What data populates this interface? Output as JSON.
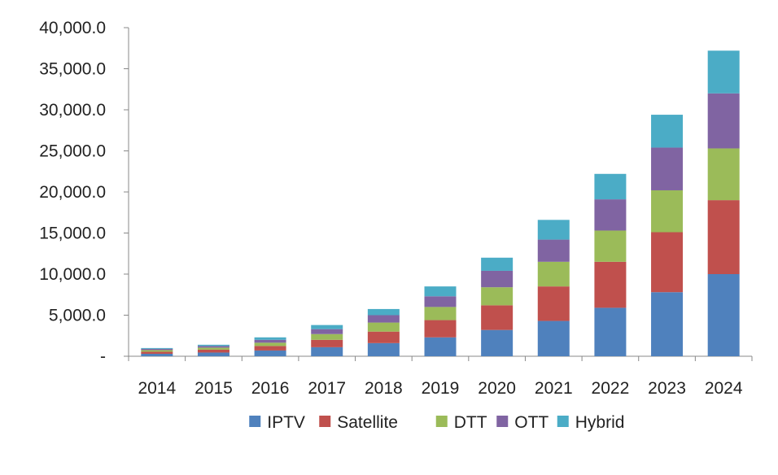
{
  "chart_data": {
    "type": "bar",
    "stacked": true,
    "categories": [
      "2014",
      "2015",
      "2016",
      "2017",
      "2018",
      "2019",
      "2020",
      "2021",
      "2022",
      "2023",
      "2024"
    ],
    "series": [
      {
        "name": "IPTV",
        "color": "#4F81BD",
        "values": [
          300,
          450,
          700,
          1100,
          1600,
          2300,
          3200,
          4300,
          5900,
          7800,
          10000
        ]
      },
      {
        "name": "Satellite",
        "color": "#C0504D",
        "values": [
          250,
          350,
          550,
          900,
          1400,
          2100,
          3000,
          4200,
          5600,
          7300,
          9000
        ]
      },
      {
        "name": "DTT",
        "color": "#9BBB59",
        "values": [
          200,
          250,
          400,
          700,
          1100,
          1600,
          2200,
          3000,
          3800,
          5100,
          6300
        ]
      },
      {
        "name": "OTT",
        "color": "#8064A2",
        "values": [
          150,
          200,
          350,
          600,
          900,
          1300,
          2000,
          2700,
          3800,
          5200,
          6700
        ]
      },
      {
        "name": "Hybrid",
        "color": "#4BACC6",
        "values": [
          100,
          150,
          300,
          500,
          750,
          1200,
          1600,
          2400,
          3100,
          4000,
          5200
        ]
      }
    ],
    "ylim": [
      0,
      40000
    ],
    "yticks": [
      0,
      5000,
      10000,
      15000,
      20000,
      25000,
      30000,
      35000,
      40000
    ],
    "ytick_labels": [
      "-",
      "5,000.0",
      "10,000.0",
      "15,000.0",
      "20,000.0",
      "25,000.0",
      "30,000.0",
      "35,000.0",
      "40,000.0"
    ],
    "grid": false,
    "legend_position": "bottom",
    "title": "",
    "xlabel": "",
    "ylabel": ""
  },
  "colors": {
    "axis": "#888888",
    "text": "#222222",
    "background": "#ffffff"
  }
}
